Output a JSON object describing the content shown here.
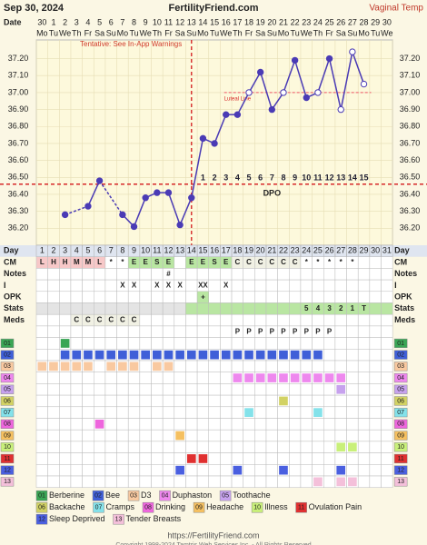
{
  "header": {
    "date": "Sep 30, 2024",
    "site": "FertilityFriend.com",
    "temp_type": "Vaginal Temp"
  },
  "chart_data": {
    "type": "line",
    "warning": "Tentative: See In-App Warnings",
    "luteal_label": "Luteal Line",
    "dpo_label": "DPO",
    "date_label": "Date",
    "day_label": "Day",
    "dates": [
      30,
      1,
      2,
      3,
      4,
      5,
      6,
      7,
      8,
      9,
      10,
      11,
      12,
      13,
      14,
      15,
      16,
      17,
      18,
      19,
      20,
      21,
      22,
      23,
      24,
      25,
      26,
      27,
      28,
      29,
      30
    ],
    "weekdays": [
      "Mo",
      "Tu",
      "We",
      "Th",
      "Fr",
      "Sa",
      "Su",
      "Mo",
      "Tu",
      "We",
      "Th",
      "Fr",
      "Sa",
      "Su",
      "Mo",
      "Tu",
      "We",
      "Th",
      "Fr",
      "Sa",
      "Su",
      "Mo",
      "Tu",
      "We",
      "Th",
      "Fr",
      "Sa",
      "Su",
      "Mo",
      "Tu",
      "We"
    ],
    "days": [
      1,
      2,
      3,
      4,
      5,
      6,
      7,
      8,
      9,
      10,
      11,
      12,
      13,
      14,
      15,
      16,
      17,
      18,
      19,
      20,
      21,
      22,
      23,
      24,
      25,
      26,
      27,
      28,
      29,
      30,
      31
    ],
    "values": [
      null,
      null,
      36.28,
      null,
      36.33,
      36.48,
      null,
      36.28,
      36.21,
      36.38,
      36.41,
      36.41,
      36.22,
      36.38,
      36.73,
      36.7,
      36.87,
      36.87,
      37.0,
      37.12,
      36.9,
      37.0,
      37.19,
      36.97,
      37.0,
      37.2,
      36.9,
      37.24,
      37.05,
      null,
      null
    ],
    "open_circle_days": [
      19,
      22,
      25,
      27,
      28,
      29
    ],
    "dpo": [
      null,
      null,
      null,
      null,
      null,
      null,
      null,
      null,
      null,
      null,
      null,
      null,
      null,
      null,
      1,
      2,
      3,
      4,
      5,
      6,
      7,
      8,
      9,
      10,
      11,
      12,
      13,
      14,
      15,
      null,
      null
    ],
    "color": "#4a3bb5",
    "coverline": 36.46,
    "luteal_line": 37.0,
    "ylim": [
      36.1,
      37.31
    ],
    "yticks": [
      {
        "value": 37.2,
        "label": "37.20"
      },
      {
        "value": 37.1,
        "label": "37.10"
      },
      {
        "value": 37.0,
        "label": "37.00"
      },
      {
        "value": 36.9,
        "label": "36.90"
      },
      {
        "value": 36.8,
        "label": "36.80"
      },
      {
        "value": 36.7,
        "label": "36.70"
      },
      {
        "value": 36.6,
        "label": "36.60"
      },
      {
        "value": 36.5,
        "label": "36.50"
      },
      {
        "value": 36.4,
        "label": "36.40"
      },
      {
        "value": 36.3,
        "label": "36.30"
      },
      {
        "value": 36.2,
        "label": "36.20"
      }
    ]
  },
  "cell_colors": {
    "L": "#f7c8c8",
    "H": "#f7c8c8",
    "M": "#f7c8c8",
    "E": "#b9e6a2",
    "S": "#b9e6a2",
    "C": "#f1f1e4",
    "+": "#b9e6a2"
  },
  "rows": [
    {
      "label": "CM",
      "cells": [
        "L",
        "H",
        "H",
        "M",
        "M",
        "L",
        "*",
        "*",
        "E",
        "E",
        "S",
        "E",
        null,
        "E",
        "E",
        "S",
        "E",
        "C",
        "C",
        "C",
        "C",
        "C",
        "C",
        "*",
        "*",
        "*",
        "*",
        "*",
        null,
        null,
        null
      ]
    },
    {
      "label": "Notes",
      "cells": [
        null,
        null,
        null,
        null,
        null,
        null,
        null,
        null,
        null,
        null,
        null,
        "#",
        null,
        null,
        null,
        null,
        null,
        null,
        null,
        null,
        null,
        null,
        null,
        null,
        null,
        null,
        null,
        null,
        null,
        null,
        null
      ]
    },
    {
      "label": "I",
      "cells": [
        null,
        null,
        null,
        null,
        null,
        null,
        null,
        "X",
        "X",
        null,
        "X",
        "X",
        "X",
        null,
        "XX",
        null,
        "X",
        null,
        null,
        null,
        null,
        null,
        null,
        null,
        null,
        null,
        null,
        null,
        null,
        null,
        null
      ]
    },
    {
      "label": "OPK",
      "cells": [
        null,
        null,
        null,
        null,
        null,
        null,
        null,
        null,
        null,
        null,
        null,
        null,
        null,
        null,
        "+",
        null,
        null,
        null,
        null,
        null,
        null,
        null,
        null,
        null,
        null,
        null,
        null,
        null,
        null,
        null,
        null
      ]
    },
    {
      "label": "Stats",
      "cells": [
        null,
        null,
        null,
        null,
        null,
        null,
        null,
        null,
        null,
        null,
        null,
        null,
        null,
        null,
        null,
        null,
        null,
        null,
        null,
        null,
        null,
        null,
        null,
        "5",
        "4",
        "3",
        "2",
        "1",
        "T",
        null,
        null
      ]
    },
    {
      "label": "Meds",
      "cells": [
        null,
        null,
        null,
        "C",
        "C",
        "C",
        "C",
        "C",
        "C",
        null,
        null,
        null,
        null,
        null,
        null,
        null,
        null,
        null,
        null,
        null,
        null,
        null,
        null,
        null,
        null,
        null,
        null,
        null,
        null,
        null,
        null
      ]
    },
    {
      "label": null,
      "cells": [
        null,
        null,
        null,
        null,
        null,
        null,
        null,
        null,
        null,
        null,
        null,
        null,
        null,
        null,
        null,
        null,
        null,
        "P",
        "P",
        "P",
        "P",
        "P",
        "P",
        "P",
        "P",
        "P",
        null,
        null,
        null,
        null,
        null
      ]
    }
  ],
  "symptoms": [
    {
      "code": "01",
      "name": "Berberine",
      "color": "#3aa655",
      "days": [
        3
      ]
    },
    {
      "code": "02",
      "name": "Bee",
      "color": "#3f5fd8",
      "days": [
        3,
        4,
        5,
        6,
        7,
        8,
        9,
        10,
        11,
        12,
        13,
        14,
        15,
        16,
        17,
        18,
        19,
        20,
        21,
        22,
        23,
        24,
        25
      ]
    },
    {
      "code": "03",
      "name": "D3",
      "color": "#f9c9a0",
      "days": [
        1,
        2,
        3,
        4,
        5,
        7,
        8,
        9,
        11,
        12
      ]
    },
    {
      "code": "04",
      "name": "Duphaston",
      "color": "#ee88ee",
      "days": [
        18,
        19,
        20,
        21,
        22,
        23,
        24,
        25,
        26,
        27
      ]
    },
    {
      "code": "05",
      "name": "Toothache",
      "color": "#c7a2ee",
      "days": [
        27
      ]
    },
    {
      "code": "06",
      "name": "Backache",
      "color": "#d2d264",
      "days": [
        22
      ]
    },
    {
      "code": "07",
      "name": "Cramps",
      "color": "#84e2ea",
      "days": [
        19,
        25
      ]
    },
    {
      "code": "08",
      "name": "Drinking",
      "color": "#ee66dd",
      "days": [
        6
      ]
    },
    {
      "code": "09",
      "name": "Headache",
      "color": "#f5c060",
      "days": [
        13
      ]
    },
    {
      "code": "10",
      "name": "Illness",
      "color": "#c9f07a",
      "days": [
        27,
        28
      ]
    },
    {
      "code": "11",
      "name": "Ovulation Pain",
      "color": "#e03030",
      "days": [
        14,
        15
      ]
    },
    {
      "code": "12",
      "name": "Sleep Deprived",
      "color": "#4a5fe0",
      "days": [
        13,
        18,
        22,
        27
      ]
    },
    {
      "code": "13",
      "name": "Tender Breasts",
      "color": "#f4c0da",
      "days": [
        25,
        27,
        28
      ]
    }
  ],
  "url": "https://FertilityFriend.com",
  "copyright": "Copyright 1998-2024 Tamtris Web Services Inc. - All Rights Reserved"
}
